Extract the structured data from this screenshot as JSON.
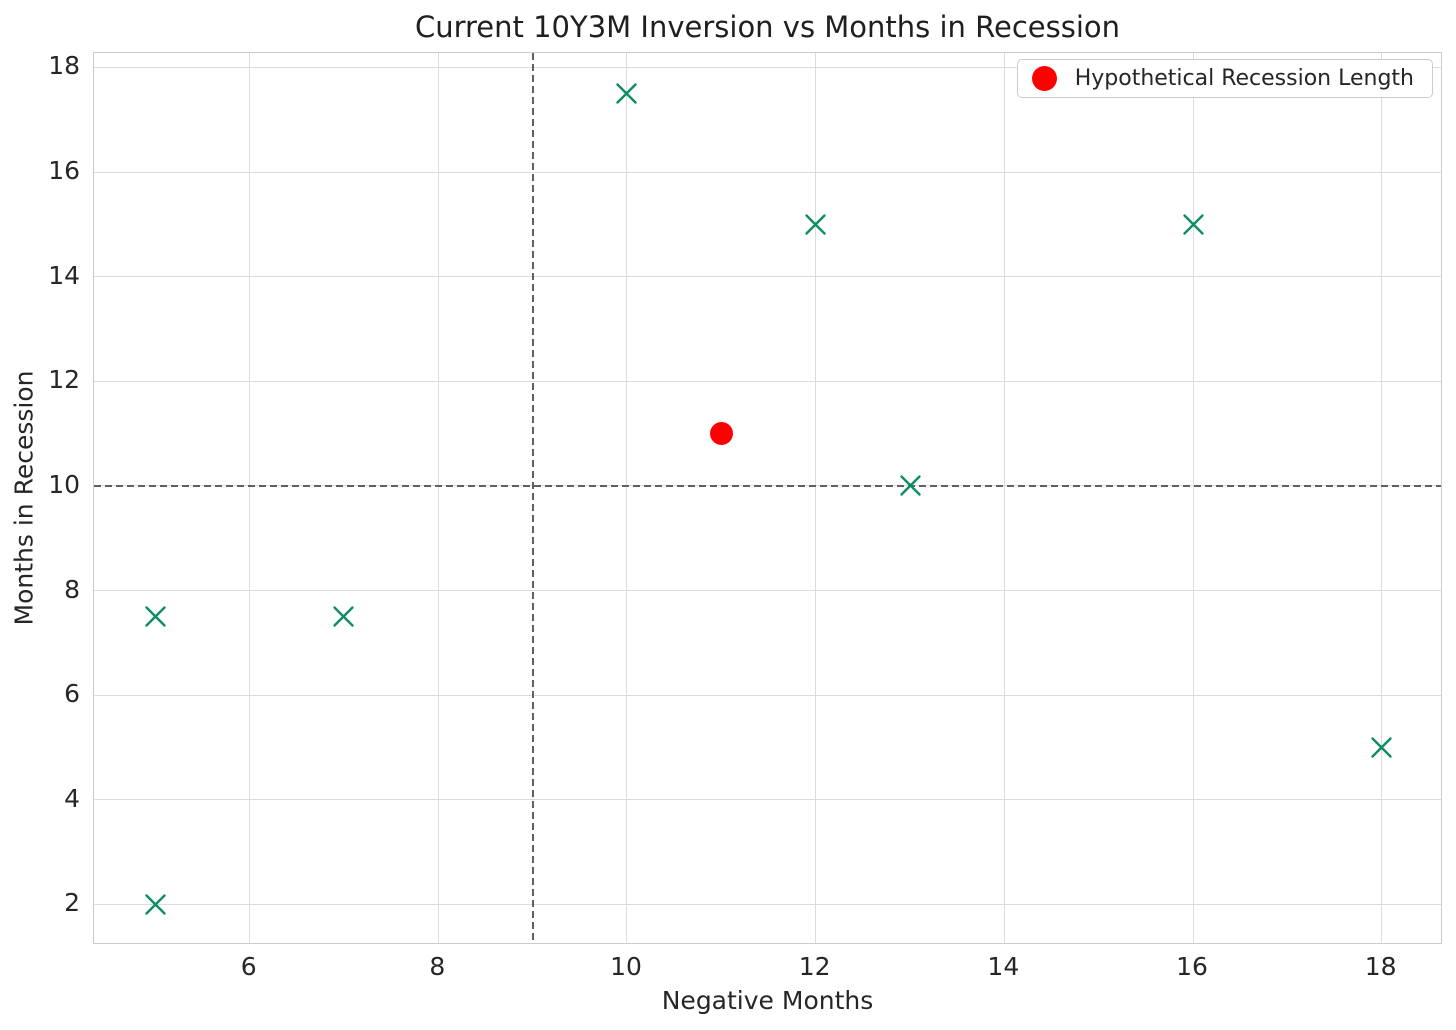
{
  "chart_data": {
    "type": "scatter",
    "title": "Current 10Y3M Inversion vs Months in Recession",
    "xlabel": "Negative Months",
    "ylabel": "Months in Recession",
    "xlim": [
      4.35,
      18.65
    ],
    "ylim": [
      1.225,
      18.275
    ],
    "xticks": [
      6,
      8,
      10,
      12,
      14,
      16,
      18
    ],
    "yticks": [
      2,
      4,
      6,
      8,
      10,
      12,
      14,
      16,
      18
    ],
    "grid": true,
    "grid_color": "#dcdcdc",
    "spine_color": "#cccccc",
    "text_color": "#262626",
    "background": "#ffffff",
    "series": [
      {
        "marker": "x",
        "color": "#0e8c66",
        "size": 23,
        "points": [
          [
            5,
            2
          ],
          [
            5,
            7.5
          ],
          [
            7,
            7.5
          ],
          [
            10,
            17.5
          ],
          [
            12,
            15
          ],
          [
            13,
            10
          ],
          [
            16,
            15
          ],
          [
            18,
            5
          ]
        ]
      },
      {
        "marker": "circle",
        "color": "#ff0000",
        "size": 23,
        "label": "Hypothetical Recession Length",
        "points": [
          [
            11,
            11
          ]
        ]
      }
    ],
    "reference_lines": [
      {
        "orientation": "vertical",
        "value": 9,
        "style": "dashed",
        "color": "#606060"
      },
      {
        "orientation": "horizontal",
        "value": 10,
        "style": "dashed",
        "color": "#606060"
      }
    ],
    "legend": {
      "position": "upper-right",
      "entries": [
        {
          "label": "Hypothetical Recession Length",
          "marker": "circle",
          "color": "#ff0000"
        }
      ]
    }
  }
}
